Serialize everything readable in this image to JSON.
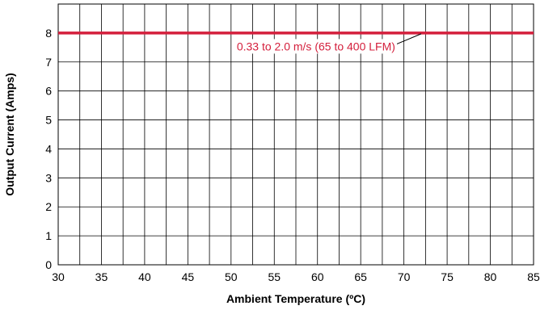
{
  "chart_data": {
    "type": "line",
    "title": "",
    "xlabel": "Ambient Temperature (ºC)",
    "ylabel": "Output Current (Amps)",
    "xlim": [
      30,
      85
    ],
    "ylim": [
      0,
      9
    ],
    "x_ticks": [
      "30",
      "35",
      "40",
      "45",
      "50",
      "55",
      "60",
      "65",
      "70",
      "75",
      "80",
      "85"
    ],
    "y_ticks": [
      "0",
      "1",
      "2",
      "3",
      "4",
      "5",
      "6",
      "7",
      "8"
    ],
    "x_minor_step": 2.5,
    "y_step": 1,
    "grid": true,
    "series": [
      {
        "name": "0.33 to 2.0 m/s (65 to 400 LFM)",
        "color": "#d41f3c",
        "x": [
          30,
          85
        ],
        "y": [
          8,
          8
        ]
      }
    ],
    "annotations": [
      {
        "text": "0.33 to 2.0 m/s (65 to 400 LFM)",
        "series": 0,
        "point_x": 72,
        "point_y": 8,
        "label_x": 69,
        "label_y": 7.4
      }
    ]
  }
}
